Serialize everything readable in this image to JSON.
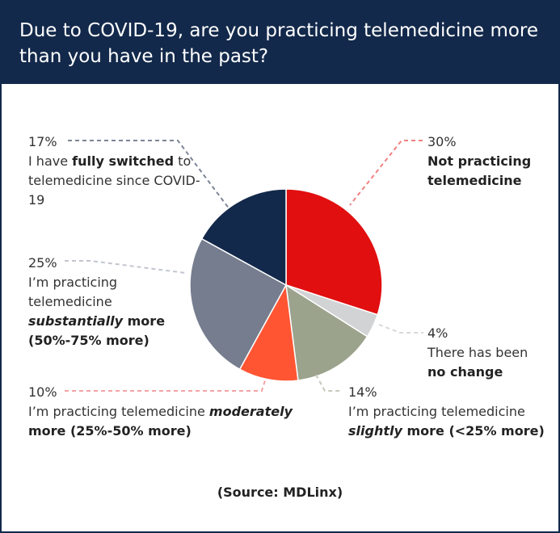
{
  "title": "Due to COVID-19, are you practicing telemedicine more than you have in the past?",
  "source": "(Source: MDLinx)",
  "chart_data": {
    "type": "pie",
    "slices": [
      {
        "percent": "30%",
        "value": 30,
        "color": "#e10f10",
        "label_parts": [
          {
            "text": "Not practicing telemedicine",
            "style": "bold"
          }
        ]
      },
      {
        "percent": "4%",
        "value": 4,
        "color": "#d2d3d5",
        "label_parts": [
          {
            "text": "There has been ",
            "style": "normal"
          },
          {
            "text": "no change",
            "style": "bold"
          }
        ]
      },
      {
        "percent": "14%",
        "value": 14,
        "color": "#9ba38c",
        "label_parts": [
          {
            "text": "I’m practicing telemedicine ",
            "style": "normal"
          },
          {
            "text": "slightly",
            "style": "bold-italic"
          },
          {
            "text": " more (<25% more)",
            "style": "bold"
          }
        ]
      },
      {
        "percent": "10%",
        "value": 10,
        "color": "#ff5533",
        "label_parts": [
          {
            "text": "I’m practicing telemedicine ",
            "style": "normal"
          },
          {
            "text": "moderately",
            "style": "bold-italic"
          },
          {
            "text": " more (25%-50% more)",
            "style": "bold"
          }
        ]
      },
      {
        "percent": "25%",
        "value": 25,
        "color": "#757d8e",
        "label_parts": [
          {
            "text": "I’m practicing telemedicine ",
            "style": "normal"
          },
          {
            "text": "substantially",
            "style": "bold-italic"
          },
          {
            "text": " more (50%-75% more)",
            "style": "bold"
          }
        ]
      },
      {
        "percent": "17%",
        "value": 17,
        "color": "#13294b",
        "label_parts": [
          {
            "text": "I have ",
            "style": "normal"
          },
          {
            "text": "fully switched",
            "style": "bold"
          },
          {
            "text": " to telemedicine since COVID-19",
            "style": "normal"
          }
        ]
      }
    ]
  }
}
